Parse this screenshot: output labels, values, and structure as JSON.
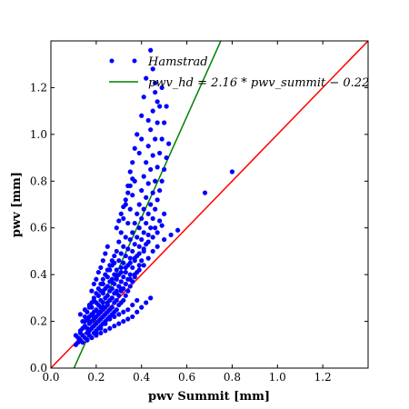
{
  "chart_data": {
    "type": "scatter",
    "xlabel": "pwv Summit [mm]",
    "ylabel": "pwv [mm]",
    "xlim": [
      0.0,
      1.4
    ],
    "ylim": [
      0.0,
      1.4
    ],
    "xticks": [
      0.0,
      0.2,
      0.4,
      0.6,
      0.8,
      1.0,
      1.2
    ],
    "yticks": [
      0.0,
      0.2,
      0.4,
      0.6,
      0.8,
      1.0,
      1.2
    ],
    "xtick_labels": [
      "0.0",
      "0.2",
      "0.4",
      "0.6",
      "0.8",
      "1.0",
      "1.2"
    ],
    "ytick_labels": [
      "0.0",
      "0.2",
      "0.4",
      "0.6",
      "0.8",
      "1.0",
      "1.2"
    ],
    "grid": false,
    "legend": {
      "position": "top-center",
      "entries": [
        {
          "label": "Hamstrad",
          "kind": "marker",
          "color": "#0000ff"
        },
        {
          "label": "pwv_hd = 2.16 * pwv_summit − 0.22",
          "kind": "line",
          "color": "#008000"
        }
      ]
    },
    "series": [
      {
        "name": "Hamstrad",
        "kind": "scatter",
        "color": "#0000ff",
        "points": [
          [
            0.11,
            0.1
          ],
          [
            0.12,
            0.11
          ],
          [
            0.12,
            0.13
          ],
          [
            0.13,
            0.12
          ],
          [
            0.13,
            0.15
          ],
          [
            0.14,
            0.14
          ],
          [
            0.14,
            0.17
          ],
          [
            0.15,
            0.13
          ],
          [
            0.15,
            0.18
          ],
          [
            0.15,
            0.2
          ],
          [
            0.16,
            0.12
          ],
          [
            0.16,
            0.15
          ],
          [
            0.16,
            0.17
          ],
          [
            0.16,
            0.21
          ],
          [
            0.17,
            0.14
          ],
          [
            0.17,
            0.16
          ],
          [
            0.17,
            0.19
          ],
          [
            0.17,
            0.22
          ],
          [
            0.18,
            0.13
          ],
          [
            0.18,
            0.17
          ],
          [
            0.18,
            0.2
          ],
          [
            0.18,
            0.23
          ],
          [
            0.18,
            0.26
          ],
          [
            0.19,
            0.15
          ],
          [
            0.19,
            0.18
          ],
          [
            0.19,
            0.21
          ],
          [
            0.19,
            0.24
          ],
          [
            0.2,
            0.16
          ],
          [
            0.2,
            0.19
          ],
          [
            0.2,
            0.22
          ],
          [
            0.2,
            0.25
          ],
          [
            0.2,
            0.28
          ],
          [
            0.21,
            0.17
          ],
          [
            0.21,
            0.2
          ],
          [
            0.21,
            0.23
          ],
          [
            0.21,
            0.27
          ],
          [
            0.21,
            0.31
          ],
          [
            0.22,
            0.18
          ],
          [
            0.22,
            0.21
          ],
          [
            0.22,
            0.24
          ],
          [
            0.22,
            0.26
          ],
          [
            0.22,
            0.29
          ],
          [
            0.22,
            0.33
          ],
          [
            0.23,
            0.19
          ],
          [
            0.23,
            0.22
          ],
          [
            0.23,
            0.25
          ],
          [
            0.23,
            0.28
          ],
          [
            0.23,
            0.32
          ],
          [
            0.23,
            0.36
          ],
          [
            0.24,
            0.2
          ],
          [
            0.24,
            0.23
          ],
          [
            0.24,
            0.26
          ],
          [
            0.24,
            0.3
          ],
          [
            0.24,
            0.34
          ],
          [
            0.25,
            0.21
          ],
          [
            0.25,
            0.24
          ],
          [
            0.25,
            0.27
          ],
          [
            0.25,
            0.31
          ],
          [
            0.25,
            0.35
          ],
          [
            0.25,
            0.39
          ],
          [
            0.26,
            0.22
          ],
          [
            0.26,
            0.25
          ],
          [
            0.26,
            0.29
          ],
          [
            0.26,
            0.33
          ],
          [
            0.26,
            0.37
          ],
          [
            0.26,
            0.42
          ],
          [
            0.27,
            0.23
          ],
          [
            0.27,
            0.26
          ],
          [
            0.27,
            0.3
          ],
          [
            0.27,
            0.34
          ],
          [
            0.27,
            0.38
          ],
          [
            0.27,
            0.44
          ],
          [
            0.28,
            0.24
          ],
          [
            0.28,
            0.28
          ],
          [
            0.28,
            0.32
          ],
          [
            0.28,
            0.36
          ],
          [
            0.28,
            0.4
          ],
          [
            0.28,
            0.45
          ],
          [
            0.29,
            0.25
          ],
          [
            0.29,
            0.29
          ],
          [
            0.29,
            0.33
          ],
          [
            0.29,
            0.38
          ],
          [
            0.29,
            0.42
          ],
          [
            0.3,
            0.27
          ],
          [
            0.3,
            0.31
          ],
          [
            0.3,
            0.35
          ],
          [
            0.3,
            0.4
          ],
          [
            0.3,
            0.46
          ],
          [
            0.31,
            0.28
          ],
          [
            0.31,
            0.33
          ],
          [
            0.31,
            0.37
          ],
          [
            0.31,
            0.43
          ],
          [
            0.31,
            0.49
          ],
          [
            0.32,
            0.29
          ],
          [
            0.32,
            0.34
          ],
          [
            0.32,
            0.39
          ],
          [
            0.32,
            0.45
          ],
          [
            0.32,
            0.52
          ],
          [
            0.33,
            0.31
          ],
          [
            0.33,
            0.36
          ],
          [
            0.33,
            0.41
          ],
          [
            0.33,
            0.48
          ],
          [
            0.34,
            0.33
          ],
          [
            0.34,
            0.38
          ],
          [
            0.34,
            0.44
          ],
          [
            0.34,
            0.51
          ],
          [
            0.35,
            0.35
          ],
          [
            0.35,
            0.4
          ],
          [
            0.35,
            0.47
          ],
          [
            0.35,
            0.55
          ],
          [
            0.36,
            0.37
          ],
          [
            0.36,
            0.43
          ],
          [
            0.36,
            0.5
          ],
          [
            0.36,
            0.58
          ],
          [
            0.37,
            0.39
          ],
          [
            0.37,
            0.46
          ],
          [
            0.37,
            0.53
          ],
          [
            0.37,
            0.62
          ],
          [
            0.38,
            0.41
          ],
          [
            0.38,
            0.48
          ],
          [
            0.38,
            0.56
          ],
          [
            0.38,
            0.66
          ],
          [
            0.39,
            0.44
          ],
          [
            0.39,
            0.52
          ],
          [
            0.39,
            0.6
          ],
          [
            0.39,
            0.7
          ],
          [
            0.4,
            0.46
          ],
          [
            0.4,
            0.55
          ],
          [
            0.4,
            0.64
          ],
          [
            0.4,
            0.76
          ],
          [
            0.41,
            0.5
          ],
          [
            0.41,
            0.58
          ],
          [
            0.41,
            0.68
          ],
          [
            0.41,
            0.82
          ],
          [
            0.42,
            0.53
          ],
          [
            0.42,
            0.62
          ],
          [
            0.42,
            0.73
          ],
          [
            0.42,
            0.88
          ],
          [
            0.43,
            0.57
          ],
          [
            0.43,
            0.66
          ],
          [
            0.43,
            0.79
          ],
          [
            0.43,
            0.95
          ],
          [
            0.44,
            0.6
          ],
          [
            0.44,
            0.7
          ],
          [
            0.44,
            0.85
          ],
          [
            0.44,
            1.02
          ],
          [
            0.45,
            0.64
          ],
          [
            0.45,
            0.75
          ],
          [
            0.45,
            0.91
          ],
          [
            0.45,
            1.1
          ],
          [
            0.46,
            0.68
          ],
          [
            0.46,
            0.8
          ],
          [
            0.46,
            0.98
          ],
          [
            0.46,
            1.18
          ],
          [
            0.47,
            0.72
          ],
          [
            0.47,
            0.86
          ],
          [
            0.47,
            1.05
          ],
          [
            0.48,
            0.76
          ],
          [
            0.48,
            0.92
          ],
          [
            0.48,
            1.12
          ],
          [
            0.49,
            0.8
          ],
          [
            0.49,
            0.98
          ],
          [
            0.49,
            1.2
          ],
          [
            0.5,
            0.85
          ],
          [
            0.5,
            1.05
          ],
          [
            0.51,
            0.9
          ],
          [
            0.51,
            1.12
          ],
          [
            0.52,
            0.96
          ],
          [
            0.44,
            1.36
          ],
          [
            0.45,
            1.28
          ],
          [
            0.42,
            1.24
          ],
          [
            0.46,
            1.22
          ],
          [
            0.41,
            1.16
          ],
          [
            0.47,
            1.14
          ],
          [
            0.4,
            1.08
          ],
          [
            0.43,
            1.06
          ],
          [
            0.38,
            1.0
          ],
          [
            0.4,
            0.98
          ],
          [
            0.37,
            0.94
          ],
          [
            0.39,
            0.92
          ],
          [
            0.36,
            0.88
          ],
          [
            0.35,
            0.84
          ],
          [
            0.37,
            0.8
          ],
          [
            0.34,
            0.78
          ],
          [
            0.36,
            0.74
          ],
          [
            0.33,
            0.7
          ],
          [
            0.35,
            0.68
          ],
          [
            0.32,
            0.64
          ],
          [
            0.34,
            0.62
          ],
          [
            0.31,
            0.58
          ],
          [
            0.33,
            0.56
          ],
          [
            0.3,
            0.54
          ],
          [
            0.29,
            0.5
          ],
          [
            0.28,
            0.48
          ],
          [
            0.27,
            0.46
          ],
          [
            0.26,
            0.44
          ],
          [
            0.25,
            0.42
          ],
          [
            0.24,
            0.4
          ],
          [
            0.23,
            0.38
          ],
          [
            0.22,
            0.36
          ],
          [
            0.21,
            0.34
          ],
          [
            0.2,
            0.32
          ],
          [
            0.19,
            0.3
          ],
          [
            0.18,
            0.28
          ],
          [
            0.17,
            0.26
          ],
          [
            0.16,
            0.24
          ],
          [
            0.15,
            0.22
          ],
          [
            0.14,
            0.2
          ],
          [
            0.8,
            0.84
          ],
          [
            0.68,
            0.75
          ],
          [
            0.56,
            0.59
          ],
          [
            0.53,
            0.57
          ],
          [
            0.5,
            0.55
          ],
          [
            0.47,
            0.52
          ],
          [
            0.45,
            0.5
          ],
          [
            0.43,
            0.47
          ],
          [
            0.41,
            0.44
          ],
          [
            0.39,
            0.42
          ],
          [
            0.37,
            0.4
          ],
          [
            0.35,
            0.38
          ],
          [
            0.33,
            0.36
          ],
          [
            0.31,
            0.34
          ],
          [
            0.29,
            0.32
          ],
          [
            0.27,
            0.3
          ],
          [
            0.25,
            0.28
          ],
          [
            0.23,
            0.26
          ],
          [
            0.21,
            0.24
          ],
          [
            0.19,
            0.22
          ],
          [
            0.17,
            0.2
          ],
          [
            0.15,
            0.18
          ],
          [
            0.13,
            0.16
          ],
          [
            0.11,
            0.14
          ],
          [
            0.44,
            0.3
          ],
          [
            0.42,
            0.28
          ],
          [
            0.4,
            0.26
          ],
          [
            0.38,
            0.24
          ],
          [
            0.36,
            0.22
          ],
          [
            0.34,
            0.21
          ],
          [
            0.32,
            0.2
          ],
          [
            0.3,
            0.19
          ],
          [
            0.28,
            0.18
          ],
          [
            0.26,
            0.17
          ],
          [
            0.24,
            0.16
          ],
          [
            0.22,
            0.15
          ],
          [
            0.2,
            0.14
          ],
          [
            0.18,
            0.13
          ],
          [
            0.16,
            0.12
          ],
          [
            0.14,
            0.11
          ],
          [
            0.25,
            0.52
          ],
          [
            0.24,
            0.49
          ],
          [
            0.23,
            0.46
          ],
          [
            0.22,
            0.43
          ],
          [
            0.21,
            0.41
          ],
          [
            0.2,
            0.38
          ],
          [
            0.19,
            0.36
          ],
          [
            0.18,
            0.33
          ],
          [
            0.46,
            0.6
          ],
          [
            0.48,
            0.63
          ],
          [
            0.5,
            0.66
          ],
          [
            0.47,
            0.58
          ],
          [
            0.49,
            0.61
          ],
          [
            0.45,
            0.56
          ],
          [
            0.43,
            0.54
          ],
          [
            0.41,
            0.51
          ],
          [
            0.39,
            0.49
          ],
          [
            0.37,
            0.47
          ],
          [
            0.35,
            0.45
          ],
          [
            0.33,
            0.43
          ],
          [
            0.31,
            0.41
          ],
          [
            0.29,
            0.39
          ],
          [
            0.27,
            0.37
          ],
          [
            0.25,
            0.35
          ],
          [
            0.23,
            0.33
          ],
          [
            0.21,
            0.31
          ],
          [
            0.19,
            0.29
          ],
          [
            0.17,
            0.27
          ],
          [
            0.15,
            0.25
          ],
          [
            0.13,
            0.23
          ],
          [
            0.38,
            0.29
          ],
          [
            0.36,
            0.27
          ],
          [
            0.34,
            0.25
          ],
          [
            0.32,
            0.24
          ],
          [
            0.3,
            0.23
          ],
          [
            0.28,
            0.22
          ],
          [
            0.26,
            0.21
          ],
          [
            0.24,
            0.19
          ],
          [
            0.22,
            0.17
          ],
          [
            0.2,
            0.15
          ],
          [
            0.29,
            0.6
          ],
          [
            0.3,
            0.63
          ],
          [
            0.31,
            0.66
          ],
          [
            0.32,
            0.69
          ],
          [
            0.33,
            0.72
          ],
          [
            0.34,
            0.75
          ],
          [
            0.35,
            0.78
          ],
          [
            0.36,
            0.81
          ]
        ]
      },
      {
        "name": "pwv_hd = 2.16 * pwv_summit − 0.22",
        "kind": "line",
        "color": "#008000",
        "slope": 2.16,
        "intercept": -0.22
      },
      {
        "kind": "line",
        "color": "#ff0000",
        "slope": 1.0,
        "intercept": 0.0
      }
    ]
  }
}
